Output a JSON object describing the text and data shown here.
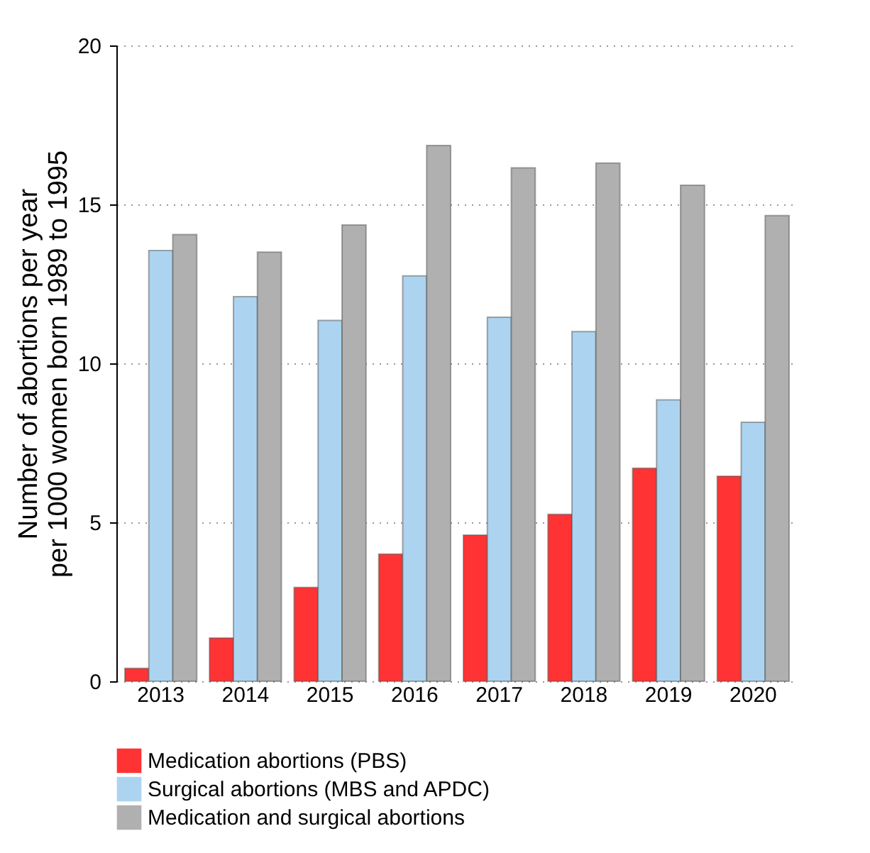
{
  "chart_data": {
    "type": "bar",
    "ylabel": "Number of abortions per year\nper 1000 women born 1989 to 1995",
    "categories": [
      "2013",
      "2014",
      "2015",
      "2016",
      "2017",
      "2018",
      "2019",
      "2020"
    ],
    "series": [
      {
        "name": "Medication abortions (PBS)",
        "color": "#ff3333",
        "values": [
          0.41,
          1.36,
          2.95,
          4.0,
          4.6,
          5.25,
          6.7,
          6.45
        ]
      },
      {
        "name": "Surgical abortions (MBS and APDC)",
        "color": "#acd4f0",
        "values": [
          13.55,
          12.1,
          11.35,
          12.75,
          11.45,
          11.0,
          8.85,
          8.15
        ]
      },
      {
        "name": "Medication and surgical abortions",
        "color": "#b0b0b0",
        "values": [
          14.05,
          13.5,
          14.35,
          16.85,
          16.15,
          16.3,
          15.6,
          14.65
        ]
      }
    ],
    "ylim": [
      0,
      20
    ],
    "yticks": [
      0,
      5,
      10,
      15,
      20
    ],
    "grid": "y",
    "legend": "bottom"
  }
}
